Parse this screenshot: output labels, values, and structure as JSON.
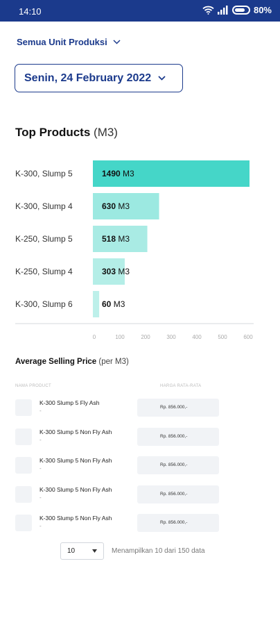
{
  "status": {
    "time": "14:10",
    "battery": "80%",
    "battery_level": 0.8
  },
  "filters": {
    "unit": "Semua Unit Produksi",
    "date": "Senin, 24 February 2022"
  },
  "top_products": {
    "title": "Top Products",
    "unit": "(M3)"
  },
  "chart_data": {
    "type": "bar",
    "orientation": "horizontal",
    "categories": [
      "K-300, Slump 5",
      "K-300, Slump 4",
      "K-250, Slump 5",
      "K-250, Slump 4",
      "K-300, Slump 6"
    ],
    "values": [
      1490,
      630,
      518,
      303,
      60
    ],
    "value_suffix": "M3",
    "ticks": [
      "0",
      "100",
      "200",
      "300",
      "400",
      "500",
      "600"
    ],
    "colors": [
      "#45d6c8",
      "#9ce9e1",
      "#a9ebe4",
      "#b4eee7",
      "#bdf0ea"
    ]
  },
  "avg_price": {
    "title": "Average Selling Price",
    "unit": "(per M3)",
    "col_product": "NAMA PRODUCT",
    "col_price": "HARGA RATA-RATA",
    "rows": [
      {
        "name": "K-300 Slump 5 Fly Ash",
        "sub": "-",
        "price": "Rp. 856.000,-"
      },
      {
        "name": "K-300 Slump 5 Non Fly Ash",
        "sub": "-",
        "price": "Rp. 856.000,-"
      },
      {
        "name": "K-300 Slump 5 Non Fly Ash",
        "sub": "-",
        "price": "Rp. 856.000,-"
      },
      {
        "name": "K-300 Slump 5 Non Fly Ash",
        "sub": "-",
        "price": "Rp. 856.000,-"
      },
      {
        "name": "K-300 Slump 5 Non Fly Ash",
        "sub": "-",
        "price": "Rp. 856.000,-"
      }
    ]
  },
  "pagination": {
    "page_size": "10",
    "info": "Menampilkan 10 dari 150 data"
  }
}
